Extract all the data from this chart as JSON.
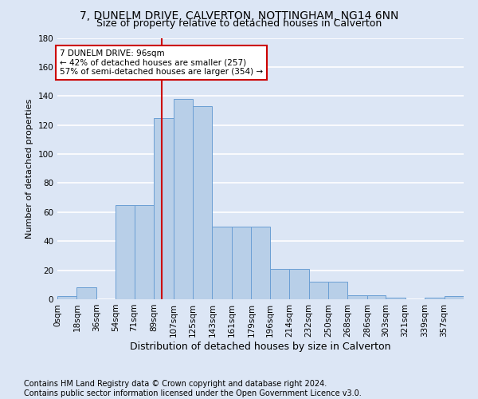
{
  "title1": "7, DUNELM DRIVE, CALVERTON, NOTTINGHAM, NG14 6NN",
  "title2": "Size of property relative to detached houses in Calverton",
  "xlabel": "Distribution of detached houses by size in Calverton",
  "ylabel": "Number of detached properties",
  "footnote": "Contains HM Land Registry data © Crown copyright and database right 2024.\nContains public sector information licensed under the Open Government Licence v3.0.",
  "bar_labels": [
    "0sqm",
    "18sqm",
    "36sqm",
    "54sqm",
    "71sqm",
    "89sqm",
    "107sqm",
    "125sqm",
    "143sqm",
    "161sqm",
    "179sqm",
    "196sqm",
    "214sqm",
    "232sqm",
    "250sqm",
    "268sqm",
    "286sqm",
    "303sqm",
    "321sqm",
    "339sqm",
    "357sqm"
  ],
  "bar_heights": [
    2,
    8,
    0,
    65,
    65,
    125,
    138,
    133,
    50,
    50,
    50,
    21,
    21,
    12,
    12,
    3,
    3,
    1,
    0,
    1,
    2
  ],
  "bin_edges": [
    0,
    18,
    36,
    54,
    71,
    89,
    107,
    125,
    143,
    161,
    179,
    196,
    214,
    232,
    250,
    268,
    286,
    303,
    321,
    339,
    357,
    375
  ],
  "bar_color": "#b8cfe8",
  "bar_edge_color": "#6b9fd4",
  "vline_x": 96,
  "vline_color": "#cc0000",
  "annotation_text": "7 DUNELM DRIVE: 96sqm\n← 42% of detached houses are smaller (257)\n57% of semi-detached houses are larger (354) →",
  "annotation_box_color": "#ffffff",
  "annotation_box_edge": "#cc0000",
  "ylim": [
    0,
    180
  ],
  "yticks": [
    0,
    20,
    40,
    60,
    80,
    100,
    120,
    140,
    160,
    180
  ],
  "background_color": "#dce6f5",
  "grid_color": "#ffffff",
  "title1_fontsize": 10,
  "title2_fontsize": 9,
  "xlabel_fontsize": 9,
  "ylabel_fontsize": 8,
  "tick_fontsize": 7.5,
  "footnote_fontsize": 7
}
